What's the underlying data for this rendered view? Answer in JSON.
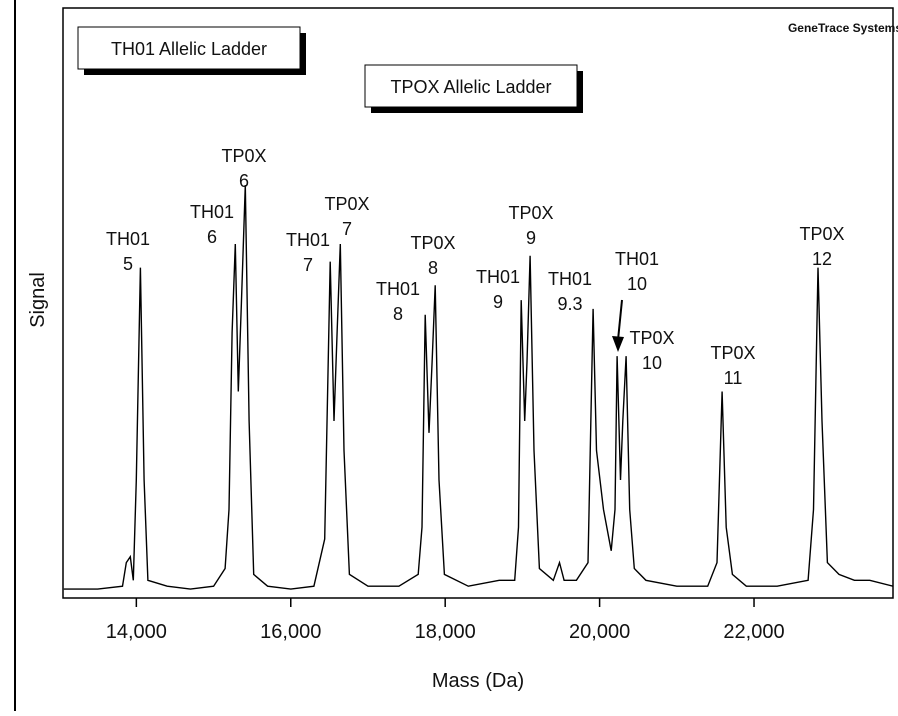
{
  "chart_data": {
    "type": "line",
    "brand": "GeneTrace Systems",
    "legend_boxes": [
      "TH01 Allelic Ladder",
      "TPOX Allelic Ladder"
    ],
    "xlabel": "Mass (Da)",
    "ylabel": "Signal",
    "xlim": [
      13050,
      23800
    ],
    "ylim": [
      0,
      100
    ],
    "xticks": [
      {
        "value": 14000,
        "label": "14,000"
      },
      {
        "value": 16000,
        "label": "16,000"
      },
      {
        "value": 18000,
        "label": "18,000"
      },
      {
        "value": 20000,
        "label": "20,000"
      },
      {
        "value": 22000,
        "label": "22,000"
      }
    ],
    "series": [
      {
        "name": "Signal",
        "color": "#000000",
        "x": [
          13060,
          13500,
          13820,
          13870,
          13922,
          13960,
          14000,
          14052,
          14100,
          14150,
          14400,
          14700,
          15000,
          15150,
          15200,
          15240,
          15282,
          15320,
          15360,
          15411,
          15460,
          15520,
          15700,
          16000,
          16300,
          16440,
          16511,
          16560,
          16600,
          16641,
          16690,
          16760,
          17000,
          17400,
          17650,
          17700,
          17741,
          17790,
          17830,
          17871,
          17920,
          17990,
          18300,
          18700,
          18900,
          18950,
          18984,
          19030,
          19060,
          19100,
          19150,
          19220,
          19400,
          19480,
          19540,
          19700,
          19850,
          19916,
          19960,
          20050,
          20150,
          20200,
          20227,
          20270,
          20300,
          20343,
          20390,
          20450,
          20600,
          21000,
          21400,
          21520,
          21586,
          21640,
          21720,
          21900,
          22300,
          22700,
          22770,
          22828,
          22880,
          22950,
          23100,
          23300,
          23500,
          23800
        ],
        "values": [
          1.5,
          1.5,
          2,
          6,
          7,
          3,
          20,
          56,
          20,
          3,
          2,
          1.5,
          2,
          5,
          15,
          45,
          60,
          35,
          50,
          70,
          30,
          4,
          2,
          1.5,
          2,
          10,
          57,
          30,
          45,
          60,
          25,
          4,
          2,
          2,
          4,
          12,
          48,
          28,
          40,
          53,
          20,
          4,
          2,
          3,
          3,
          12,
          50.5,
          30,
          40,
          58,
          25,
          5,
          3,
          6,
          3,
          3,
          6,
          49,
          25,
          15,
          8,
          15,
          41,
          20,
          30,
          41,
          15,
          5,
          3,
          2,
          2,
          6,
          35,
          12,
          4,
          2,
          2,
          3,
          15,
          56,
          30,
          6,
          4,
          3,
          3,
          2
        ]
      }
    ],
    "annotations": [
      [
        "TH01",
        "5"
      ],
      [
        "TH01",
        "6"
      ],
      [
        "TP0X",
        "6"
      ],
      [
        "TH01",
        "7"
      ],
      [
        "TP0X",
        "7"
      ],
      [
        "TH01",
        "8"
      ],
      [
        "TP0X",
        "8"
      ],
      [
        "TH01",
        "9"
      ],
      [
        "TP0X",
        "9"
      ],
      [
        "TH01",
        "9.3"
      ],
      [
        "TH01",
        "10"
      ],
      [
        "TP0X",
        "10"
      ],
      [
        "TP0X",
        "11"
      ],
      [
        "TP0X",
        "12"
      ]
    ]
  }
}
